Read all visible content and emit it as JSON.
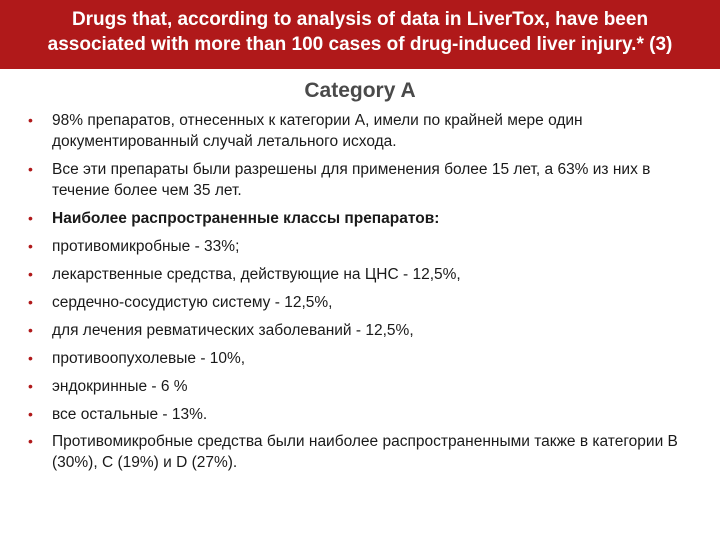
{
  "header": {
    "title": "Drugs that, according to analysis of data in LiverTox, have been associated with more than 100 cases of drug-induced liver injury.* (3)"
  },
  "subtitle": "Category  A",
  "bullets": [
    {
      "text": "98% препаратов, отнесенных к категории A, имели по крайней мере один документированный случай летального исхода.",
      "bold": false
    },
    {
      "text": "Все эти препараты были разрешены для применения более 15 лет, а 63% из них в течение более чем 35 лет.",
      "bold": false
    },
    {
      "text": "Наиболее распространенные классы препаратов:",
      "bold": true
    },
    {
      "text": "противомикробные - 33%;",
      "bold": false
    },
    {
      "text": "лекарственные средства, действующие на ЦНС - 12,5%,",
      "bold": false
    },
    {
      "text": "сердечно-сосудистую систему - 12,5%,",
      "bold": false
    },
    {
      "text": "для лечения ревматических заболеваний - 12,5%,",
      "bold": false
    },
    {
      "text": "противоопухолевые - 10%,",
      "bold": false
    },
    {
      "text": "эндокринные - 6 %",
      "bold": false
    },
    {
      "text": "все остальные - 13%.",
      "bold": false
    },
    {
      "text": "Противомикробные средства были наиболее распространенными также в категории B (30%), C (19%) и D (27%).",
      "bold": false
    }
  ],
  "colors": {
    "header_bg": "#b0191a",
    "header_text": "#ffffff",
    "subtitle_text": "#4a4a4a",
    "body_text": "#1a1a1a",
    "bullet_marker": "#b0191a",
    "page_bg": "#ffffff"
  },
  "typography": {
    "header_fontsize": 19,
    "subtitle_fontsize": 21,
    "body_fontsize": 15.5,
    "font_family": "Arial"
  }
}
